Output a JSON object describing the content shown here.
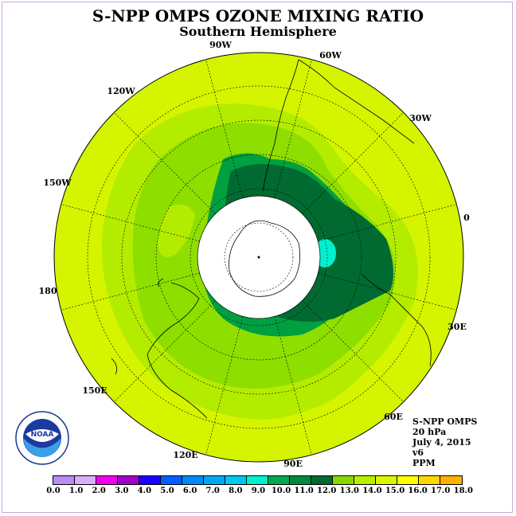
{
  "title": "S-NPP OMPS OZONE MIXING RATIO",
  "subtitle": "Southern Hemisphere",
  "longitude_labels": [
    "90W",
    "60W",
    "30W",
    "0",
    "30E",
    "60E",
    "90E",
    "120E",
    "150E",
    "180",
    "150W",
    "120W"
  ],
  "info": {
    "instrument": "S-NPP OMPS",
    "level": "20 hPa",
    "date": "July 4, 2015",
    "version": "v6",
    "units": "PPM"
  },
  "logo": {
    "text": "NOAA",
    "icon": "noaa-logo"
  },
  "colorbar": {
    "colors": [
      "#b88cf0",
      "#d8b0f8",
      "#f000f0",
      "#a000c8",
      "#1a00ff",
      "#0060ff",
      "#0088f8",
      "#00a8f0",
      "#00c8f0",
      "#00f0d0",
      "#00a850",
      "#008840",
      "#006830",
      "#88d800",
      "#b8f000",
      "#d8f800",
      "#ffff00",
      "#ffd800",
      "#ffb000",
      "#ff8800",
      "#ff5000",
      "#ff0000",
      "#d00000",
      "#806040"
    ],
    "ticks": [
      "0.0",
      "1.0",
      "2.0",
      "3.0",
      "4.0",
      "5.0",
      "6.0",
      "7.0",
      "8.0",
      "9.0",
      "10.0",
      "11.0",
      "12.0",
      "13.0",
      "14.0",
      "15.0",
      "16.0",
      "17.0",
      "18.0"
    ]
  }
}
